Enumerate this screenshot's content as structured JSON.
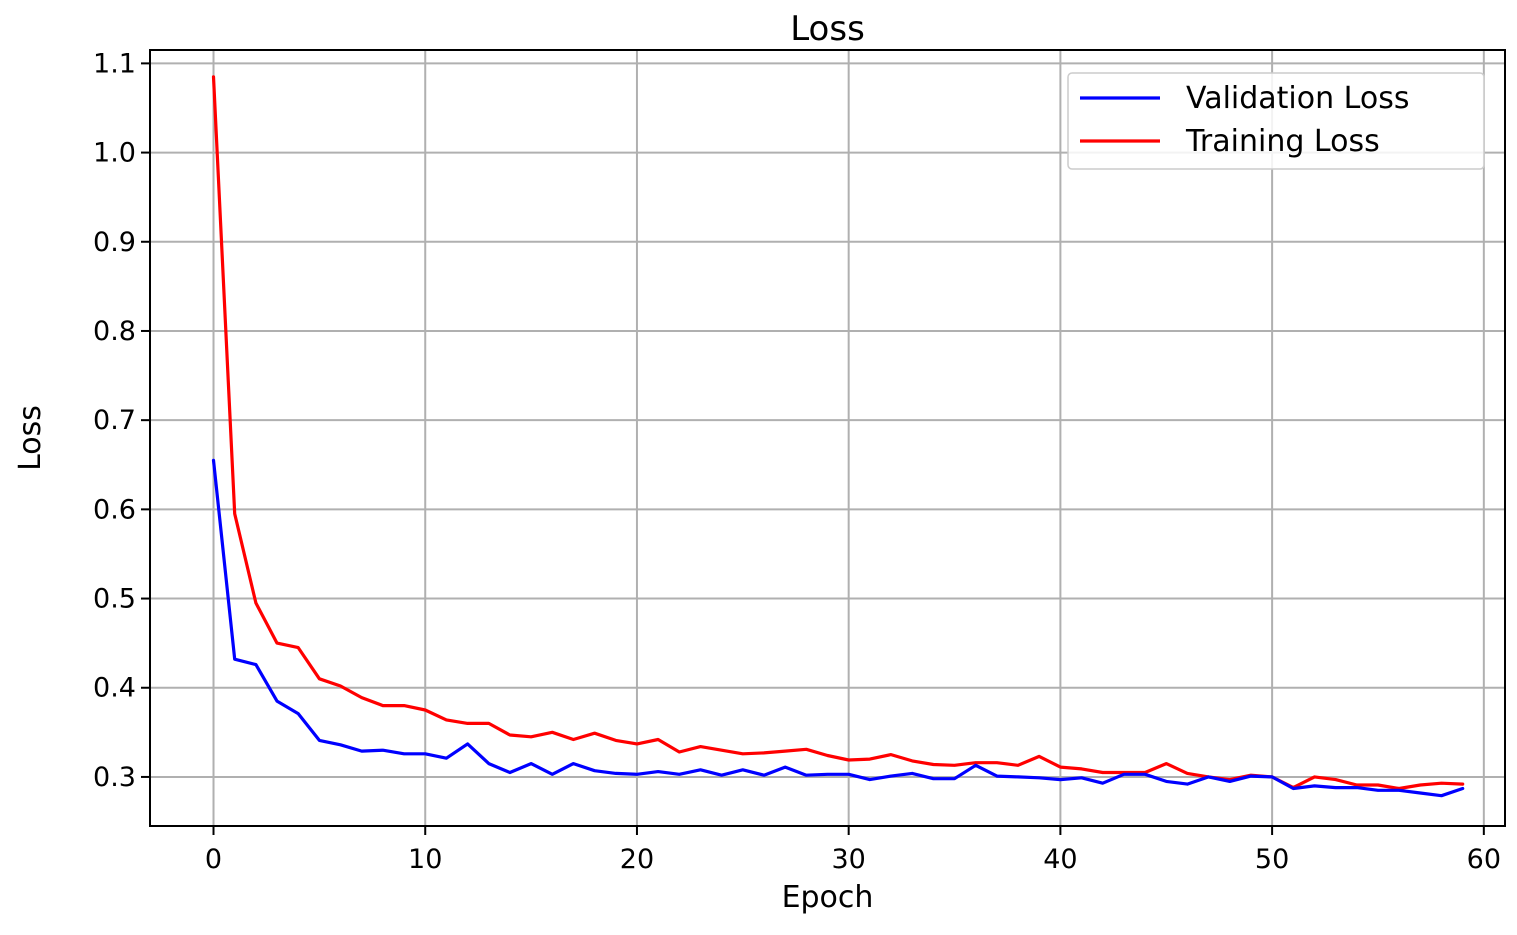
{
  "chart_data": {
    "type": "line",
    "title": "Loss",
    "xlabel": "Epoch",
    "ylabel": "Loss",
    "xlim": [
      -3,
      61
    ],
    "ylim": [
      0.245,
      1.115
    ],
    "xticks": [
      0,
      10,
      20,
      30,
      40,
      50,
      60
    ],
    "yticks": [
      0.3,
      0.4,
      0.5,
      0.6,
      0.7,
      0.8,
      0.9,
      1.0,
      1.1
    ],
    "xtick_labels": [
      "0",
      "10",
      "20",
      "30",
      "40",
      "50",
      "60"
    ],
    "ytick_labels": [
      "0.3",
      "0.4",
      "0.5",
      "0.6",
      "0.7",
      "0.8",
      "0.9",
      "1.0",
      "1.1"
    ],
    "grid": true,
    "legend_position": "top-right",
    "series": [
      {
        "name": "Validation Loss",
        "color": "#0000ff",
        "x": [
          0,
          1,
          2,
          3,
          4,
          5,
          6,
          7,
          8,
          9,
          10,
          11,
          12,
          13,
          14,
          15,
          16,
          17,
          18,
          19,
          20,
          21,
          22,
          23,
          24,
          25,
          26,
          27,
          28,
          29,
          30,
          31,
          32,
          33,
          34,
          35,
          36,
          37,
          38,
          39,
          40,
          41,
          42,
          43,
          44,
          45,
          46,
          47,
          48,
          49,
          50,
          51,
          52,
          53,
          54,
          55,
          56,
          57,
          58,
          59
        ],
        "values": [
          0.655,
          0.432,
          0.426,
          0.385,
          0.371,
          0.341,
          0.336,
          0.329,
          0.33,
          0.326,
          0.326,
          0.321,
          0.337,
          0.315,
          0.305,
          0.315,
          0.303,
          0.315,
          0.307,
          0.304,
          0.303,
          0.306,
          0.303,
          0.308,
          0.302,
          0.308,
          0.302,
          0.311,
          0.302,
          0.303,
          0.303,
          0.297,
          0.301,
          0.304,
          0.298,
          0.298,
          0.313,
          0.301,
          0.3,
          0.299,
          0.297,
          0.299,
          0.293,
          0.303,
          0.303,
          0.295,
          0.292,
          0.3,
          0.295,
          0.301,
          0.3,
          0.287,
          0.29,
          0.288,
          0.288,
          0.285,
          0.285,
          0.282,
          0.279,
          0.287
        ]
      },
      {
        "name": "Training Loss",
        "color": "#ff0000",
        "x": [
          0,
          1,
          2,
          3,
          4,
          5,
          6,
          7,
          8,
          9,
          10,
          11,
          12,
          13,
          14,
          15,
          16,
          17,
          18,
          19,
          20,
          21,
          22,
          23,
          24,
          25,
          26,
          27,
          28,
          29,
          30,
          31,
          32,
          33,
          34,
          35,
          36,
          37,
          38,
          39,
          40,
          41,
          42,
          43,
          44,
          45,
          46,
          47,
          48,
          49,
          50,
          51,
          52,
          53,
          54,
          55,
          56,
          57,
          58,
          59
        ],
        "values": [
          1.085,
          0.595,
          0.495,
          0.45,
          0.445,
          0.41,
          0.402,
          0.389,
          0.38,
          0.38,
          0.375,
          0.364,
          0.36,
          0.36,
          0.347,
          0.345,
          0.35,
          0.342,
          0.349,
          0.341,
          0.337,
          0.342,
          0.328,
          0.334,
          0.33,
          0.326,
          0.327,
          0.329,
          0.331,
          0.324,
          0.319,
          0.32,
          0.325,
          0.318,
          0.314,
          0.313,
          0.316,
          0.316,
          0.313,
          0.323,
          0.311,
          0.309,
          0.305,
          0.305,
          0.305,
          0.315,
          0.304,
          0.3,
          0.297,
          0.302,
          0.3,
          0.288,
          0.3,
          0.297,
          0.291,
          0.291,
          0.287,
          0.291,
          0.293,
          0.292
        ]
      }
    ]
  }
}
